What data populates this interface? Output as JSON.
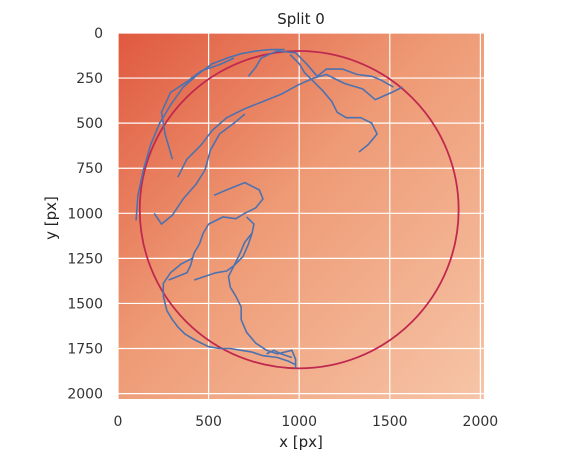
{
  "chart_data": {
    "type": "scatter",
    "title": "Split 0",
    "xlabel": "x [px]",
    "ylabel": "y [px]",
    "xlim": [
      0,
      2020
    ],
    "ylim": [
      2030,
      0
    ],
    "xticks": [
      0,
      500,
      1000,
      1500,
      2000
    ],
    "yticks": [
      0,
      250,
      500,
      750,
      1000,
      1250,
      1500,
      1750,
      2000
    ],
    "grid": true,
    "background": "image (Petri dish photograph)",
    "circle": {
      "center": [
        1000,
        980
      ],
      "radius": 880,
      "color": "#c0294f"
    },
    "series": [
      {
        "color": "#4c72b0",
        "paths": [
          [
            [
              100,
              1040
            ],
            [
              110,
              900
            ],
            [
              140,
              760
            ],
            [
              180,
              620
            ],
            [
              230,
              500
            ],
            [
              290,
              400
            ],
            [
              360,
              300
            ],
            [
              440,
              230
            ],
            [
              520,
              170
            ],
            [
              600,
              140
            ],
            [
              680,
              115
            ],
            [
              760,
              100
            ],
            [
              840,
              92
            ],
            [
              920,
              92
            ]
          ],
          [
            [
              300,
              700
            ],
            [
              260,
              560
            ],
            [
              240,
              440
            ],
            [
              290,
              330
            ],
            [
              380,
              270
            ],
            [
              460,
              210
            ],
            [
              560,
              175
            ],
            [
              640,
              140
            ]
          ],
          [
            [
              330,
              800
            ],
            [
              380,
              700
            ],
            [
              460,
              620
            ],
            [
              520,
              540
            ],
            [
              600,
              470
            ],
            [
              700,
              420
            ],
            [
              800,
              380
            ],
            [
              900,
              340
            ],
            [
              990,
              290
            ],
            [
              1080,
              250
            ],
            [
              1150,
              230
            ],
            [
              1250,
              280
            ],
            [
              1350,
              310
            ],
            [
              1420,
              370
            ],
            [
              1510,
              330
            ],
            [
              1570,
              300
            ]
          ],
          [
            [
              720,
              240
            ],
            [
              760,
              190
            ],
            [
              790,
              140
            ],
            [
              830,
              120
            ],
            [
              880,
              100
            ],
            [
              980,
              110
            ],
            [
              1040,
              170
            ],
            [
              1100,
              240
            ],
            [
              1150,
              200
            ],
            [
              1240,
              200
            ],
            [
              1320,
              230
            ],
            [
              1400,
              240
            ],
            [
              1450,
              260
            ],
            [
              1520,
              300
            ]
          ],
          [
            [
              200,
              1000
            ],
            [
              240,
              1060
            ],
            [
              300,
              1010
            ],
            [
              360,
              920
            ],
            [
              430,
              840
            ],
            [
              480,
              760
            ],
            [
              510,
              650
            ],
            [
              560,
              560
            ],
            [
              640,
              500
            ],
            [
              700,
              450
            ]
          ],
          [
            [
              950,
              120
            ],
            [
              1000,
              170
            ],
            [
              1030,
              220
            ],
            [
              1080,
              270
            ],
            [
              1130,
              320
            ],
            [
              1180,
              380
            ],
            [
              1210,
              440
            ],
            [
              1260,
              470
            ],
            [
              1340,
              470
            ],
            [
              1400,
              500
            ],
            [
              1430,
              560
            ],
            [
              1380,
              620
            ],
            [
              1330,
              660
            ]
          ],
          [
            [
              530,
              900
            ],
            [
              600,
              870
            ],
            [
              700,
              830
            ],
            [
              780,
              870
            ],
            [
              800,
              920
            ],
            [
              760,
              970
            ],
            [
              700,
              1000
            ],
            [
              650,
              1030
            ],
            [
              580,
              1020
            ],
            [
              500,
              1060
            ],
            [
              470,
              1110
            ],
            [
              450,
              1170
            ],
            [
              420,
              1220
            ],
            [
              400,
              1290
            ],
            [
              380,
              1330
            ],
            [
              330,
              1350
            ],
            [
              280,
              1370
            ]
          ],
          [
            [
              420,
              1370
            ],
            [
              480,
              1350
            ],
            [
              540,
              1330
            ],
            [
              600,
              1320
            ],
            [
              640,
              1290
            ],
            [
              690,
              1240
            ],
            [
              720,
              1170
            ],
            [
              740,
              1110
            ],
            [
              750,
              1060
            ],
            [
              710,
              1020
            ]
          ],
          [
            [
              410,
              1250
            ],
            [
              350,
              1280
            ],
            [
              290,
              1330
            ],
            [
              250,
              1390
            ],
            [
              250,
              1460
            ],
            [
              270,
              1540
            ],
            [
              300,
              1590
            ],
            [
              330,
              1630
            ],
            [
              370,
              1670
            ],
            [
              420,
              1700
            ],
            [
              460,
              1720
            ],
            [
              500,
              1740
            ],
            [
              560,
              1750
            ],
            [
              620,
              1750
            ],
            [
              680,
              1760
            ],
            [
              740,
              1770
            ],
            [
              800,
              1790
            ],
            [
              880,
              1800
            ],
            [
              940,
              1820
            ],
            [
              980,
              1840
            ]
          ],
          [
            [
              740,
              1110
            ],
            [
              700,
              1160
            ],
            [
              670,
              1230
            ],
            [
              640,
              1290
            ],
            [
              610,
              1350
            ],
            [
              620,
              1410
            ],
            [
              650,
              1460
            ],
            [
              680,
              1520
            ],
            [
              680,
              1590
            ],
            [
              710,
              1660
            ],
            [
              760,
              1720
            ],
            [
              820,
              1760
            ],
            [
              880,
              1780
            ],
            [
              960,
              1760
            ],
            [
              980,
              1810
            ],
            [
              980,
              1860
            ]
          ],
          [
            [
              820,
              1780
            ],
            [
              860,
              1760
            ],
            [
              900,
              1780
            ],
            [
              960,
              1800
            ]
          ]
        ]
      }
    ]
  }
}
